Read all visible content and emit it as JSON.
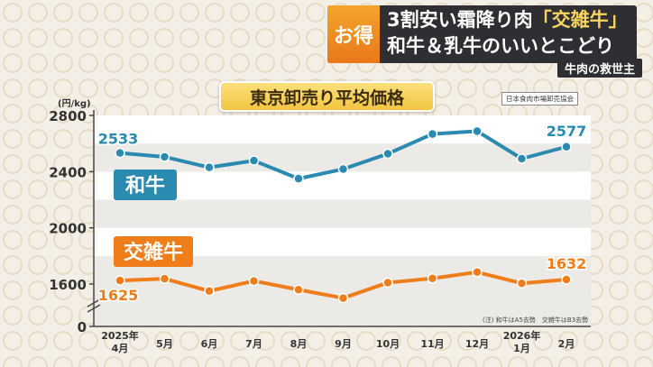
{
  "caption": {
    "tag": "お得",
    "line1_pre": "3割安い霜降り肉",
    "line1_highlight": "「交雑牛」",
    "line2": "和牛＆乳牛のいいとこどり",
    "sub": "牛肉の救世主"
  },
  "colors": {
    "wagyu": "#2b8ab0",
    "kozatsu": "#ee7d1a",
    "title_bg": "#f3c542",
    "caption_bg": "#2f2f33"
  },
  "chart_data": {
    "type": "line",
    "title": "東京卸売り平均価格",
    "source": "日本食肉市場卸売協会",
    "note": "(注) 和牛はA5去勢　交雑牛はB3去勢",
    "y_unit": "(円/kg)",
    "ylim": [
      0,
      2800
    ],
    "y_ticks": [
      "2800",
      "2400",
      "2000",
      "1600",
      "0"
    ],
    "axis_break": true,
    "grid": true,
    "categories": [
      [
        "2025年",
        "4月"
      ],
      [
        "5月"
      ],
      [
        "6月"
      ],
      [
        "7月"
      ],
      [
        "8月"
      ],
      [
        "9月"
      ],
      [
        "10月"
      ],
      [
        "11月"
      ],
      [
        "12月"
      ],
      [
        "2026年",
        "1月"
      ],
      [
        "2月"
      ]
    ],
    "series": [
      {
        "name": "和牛",
        "values": [
          2533,
          2505,
          2430,
          2478,
          2350,
          2418,
          2527,
          2668,
          2688,
          2492,
          2577
        ],
        "first_label": "2533",
        "last_label": "2577"
      },
      {
        "name": "交雑牛",
        "values": [
          1625,
          1638,
          1550,
          1622,
          1560,
          1500,
          1610,
          1640,
          1685,
          1605,
          1632
        ],
        "first_label": "1625",
        "last_label": "1632"
      }
    ]
  }
}
